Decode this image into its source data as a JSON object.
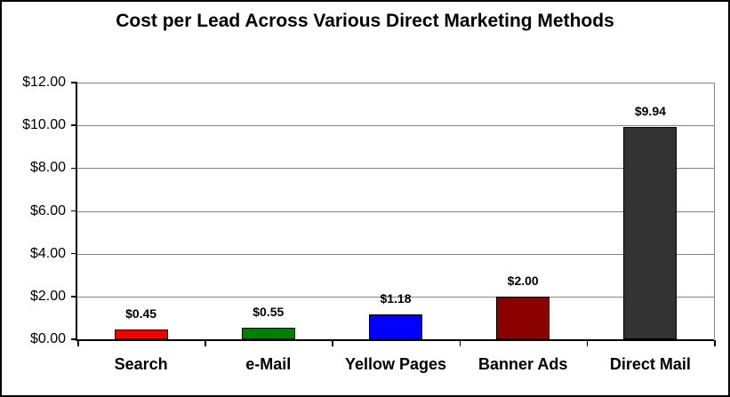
{
  "chart_data": {
    "type": "bar",
    "title": "Cost per Lead Across Various Direct Marketing Methods",
    "categories": [
      "Search",
      "e-Mail",
      "Yellow Pages",
      "Banner Ads",
      "Direct Mail"
    ],
    "values": [
      0.45,
      0.55,
      1.18,
      2.0,
      9.94
    ],
    "data_labels": [
      "$0.45",
      "$0.55",
      "$1.18",
      "$2.00",
      "$9.94"
    ],
    "bar_colors": [
      "#ee0000",
      "#008000",
      "#0000ff",
      "#8b0000",
      "#333333"
    ],
    "bar_border_color": "#000000",
    "xlabel": "",
    "ylabel": "",
    "ylim": [
      0,
      12
    ],
    "ytick_interval": 2,
    "ytick_labels": [
      "$0.00",
      "$2.00",
      "$4.00",
      "$6.00",
      "$8.00",
      "$10.00",
      "$12.00"
    ],
    "grid": "horizontal",
    "gridline_color": "#848484",
    "axis_color": "#000000",
    "legend": "none",
    "background_color": "#ffffff"
  }
}
